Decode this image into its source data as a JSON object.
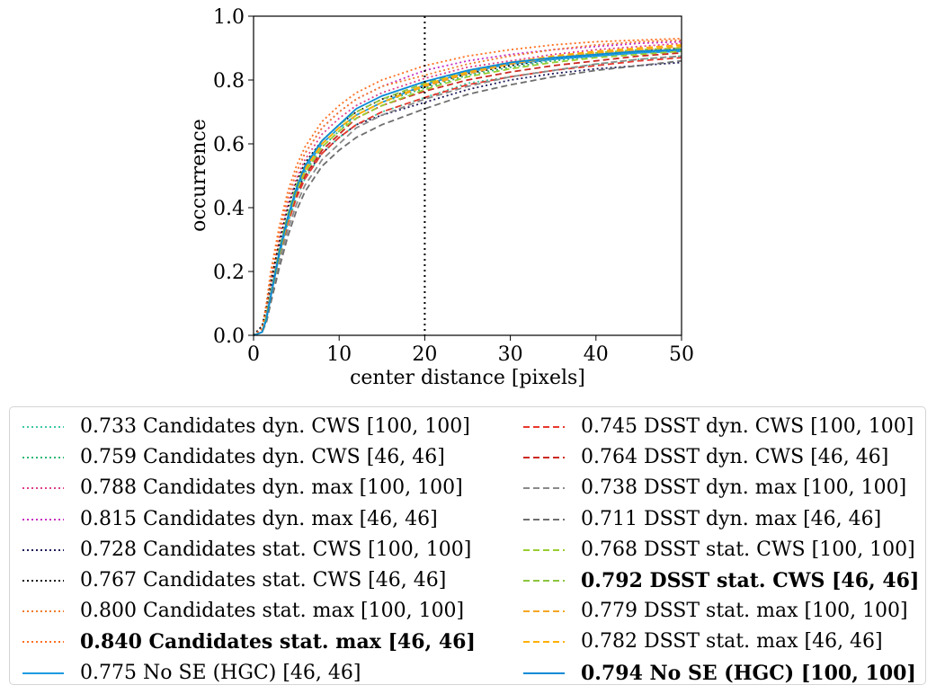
{
  "chart_data": {
    "type": "line",
    "xlabel": "center distance [pixels]",
    "ylabel": "occurrence",
    "xlim": [
      0,
      50
    ],
    "ylim": [
      0,
      1.0
    ],
    "xticks": [
      "0",
      "10",
      "20",
      "30",
      "40",
      "50"
    ],
    "yticks": [
      "0.0",
      "0.2",
      "0.4",
      "0.6",
      "0.8",
      "1.0"
    ],
    "threshold_x": 20,
    "grid": false,
    "legend_position": "below",
    "x": [
      0,
      1,
      1.5,
      2,
      3,
      4,
      5,
      6,
      8,
      10,
      12,
      15,
      20,
      25,
      30,
      35,
      40,
      45,
      50
    ],
    "series": [
      {
        "name": "0.733 Candidates dyn. CWS [100, 100]",
        "color": "#3ec9a3",
        "style": "dotted",
        "bold": false,
        "column": 0,
        "values": [
          0.0,
          0.01,
          0.05,
          0.12,
          0.25,
          0.35,
          0.43,
          0.49,
          0.57,
          0.62,
          0.66,
          0.7,
          0.745,
          0.79,
          0.81,
          0.83,
          0.85,
          0.865,
          0.875
        ]
      },
      {
        "name": "0.759 Candidates dyn. CWS [46, 46]",
        "color": "#2eb873",
        "style": "dotted",
        "bold": false,
        "column": 0,
        "values": [
          0.0,
          0.01,
          0.06,
          0.13,
          0.26,
          0.37,
          0.45,
          0.51,
          0.59,
          0.64,
          0.69,
          0.73,
          0.775,
          0.815,
          0.84,
          0.86,
          0.875,
          0.885,
          0.895
        ]
      },
      {
        "name": "0.788 Candidates dyn. max [100, 100]",
        "color": "#e0408a",
        "style": "dotted",
        "bold": false,
        "column": 0,
        "values": [
          0.0,
          0.02,
          0.08,
          0.16,
          0.3,
          0.41,
          0.49,
          0.55,
          0.63,
          0.68,
          0.72,
          0.76,
          0.805,
          0.84,
          0.86,
          0.88,
          0.895,
          0.905,
          0.915
        ]
      },
      {
        "name": "0.815 Candidates dyn. max [46, 46]",
        "color": "#c72fc0",
        "style": "dotted",
        "bold": false,
        "column": 0,
        "values": [
          0.0,
          0.02,
          0.09,
          0.18,
          0.32,
          0.43,
          0.51,
          0.57,
          0.65,
          0.7,
          0.74,
          0.78,
          0.83,
          0.86,
          0.88,
          0.895,
          0.905,
          0.915,
          0.92
        ]
      },
      {
        "name": "0.728 Candidates stat. CWS [100, 100]",
        "color": "#1e1a5a",
        "style": "dotted",
        "bold": false,
        "column": 0,
        "values": [
          0.0,
          0.03,
          0.08,
          0.15,
          0.27,
          0.37,
          0.45,
          0.5,
          0.57,
          0.62,
          0.66,
          0.69,
          0.73,
          0.77,
          0.8,
          0.82,
          0.835,
          0.845,
          0.855
        ]
      },
      {
        "name": "0.767 Candidates stat. CWS [46, 46]",
        "color": "#141414",
        "style": "dotted",
        "bold": false,
        "column": 0,
        "values": [
          0.0,
          0.03,
          0.09,
          0.17,
          0.29,
          0.4,
          0.48,
          0.54,
          0.61,
          0.66,
          0.7,
          0.74,
          0.78,
          0.82,
          0.845,
          0.865,
          0.88,
          0.89,
          0.9
        ]
      },
      {
        "name": "0.800 Candidates stat. max [100, 100]",
        "color": "#f07b28",
        "style": "dotted",
        "bold": false,
        "column": 0,
        "values": [
          0.0,
          0.02,
          0.09,
          0.18,
          0.32,
          0.43,
          0.51,
          0.57,
          0.65,
          0.7,
          0.74,
          0.78,
          0.815,
          0.85,
          0.875,
          0.895,
          0.91,
          0.92,
          0.925
        ]
      },
      {
        "name": "0.840 Candidates stat. max [46, 46]",
        "color": "#ff6f1e",
        "style": "dotted",
        "bold": true,
        "column": 0,
        "values": [
          0.0,
          0.02,
          0.1,
          0.2,
          0.34,
          0.45,
          0.53,
          0.59,
          0.67,
          0.72,
          0.76,
          0.8,
          0.845,
          0.875,
          0.895,
          0.91,
          0.92,
          0.925,
          0.93
        ]
      },
      {
        "name": "0.775 No SE (HGC) [46, 46]",
        "color": "#1d9be0",
        "style": "solid",
        "bold": false,
        "column": 0,
        "values": [
          0.0,
          0.01,
          0.05,
          0.12,
          0.25,
          0.36,
          0.45,
          0.52,
          0.6,
          0.65,
          0.69,
          0.73,
          0.785,
          0.825,
          0.85,
          0.865,
          0.875,
          0.885,
          0.89
        ]
      },
      {
        "name": "0.745 DSST dyn. CWS [100, 100]",
        "color": "#e8382e",
        "style": "dashed",
        "bold": false,
        "column": 1,
        "values": [
          0.0,
          0.01,
          0.05,
          0.12,
          0.24,
          0.35,
          0.43,
          0.49,
          0.57,
          0.62,
          0.66,
          0.7,
          0.745,
          0.785,
          0.81,
          0.83,
          0.845,
          0.86,
          0.87
        ]
      },
      {
        "name": "0.764 DSST dyn. CWS [46, 46]",
        "color": "#cc2a22",
        "style": "dashed",
        "bold": false,
        "column": 1,
        "values": [
          0.0,
          0.01,
          0.05,
          0.12,
          0.25,
          0.36,
          0.44,
          0.5,
          0.58,
          0.63,
          0.68,
          0.72,
          0.765,
          0.8,
          0.825,
          0.845,
          0.86,
          0.875,
          0.885
        ]
      },
      {
        "name": "0.738 DSST dyn. max [100, 100]",
        "color": "#8a8a8a",
        "style": "dashed",
        "bold": false,
        "column": 1,
        "values": [
          0.0,
          0.01,
          0.05,
          0.11,
          0.23,
          0.33,
          0.41,
          0.47,
          0.55,
          0.6,
          0.65,
          0.69,
          0.74,
          0.78,
          0.81,
          0.83,
          0.85,
          0.865,
          0.875
        ]
      },
      {
        "name": "0.711 DSST dyn. max [46, 46]",
        "color": "#6e6e6e",
        "style": "dashed",
        "bold": false,
        "column": 1,
        "values": [
          0.0,
          0.01,
          0.04,
          0.1,
          0.21,
          0.31,
          0.39,
          0.45,
          0.53,
          0.58,
          0.62,
          0.66,
          0.71,
          0.755,
          0.785,
          0.81,
          0.83,
          0.845,
          0.86
        ]
      },
      {
        "name": "0.768 DSST stat. CWS [100, 100]",
        "color": "#9acd32",
        "style": "dashed",
        "bold": false,
        "column": 1,
        "values": [
          0.0,
          0.01,
          0.05,
          0.12,
          0.25,
          0.36,
          0.45,
          0.51,
          0.59,
          0.64,
          0.68,
          0.72,
          0.77,
          0.81,
          0.835,
          0.855,
          0.87,
          0.88,
          0.89
        ]
      },
      {
        "name": "0.792 DSST stat. CWS [46, 46]",
        "color": "#8bc53f",
        "style": "dashed",
        "bold": true,
        "column": 1,
        "values": [
          0.0,
          0.01,
          0.06,
          0.13,
          0.27,
          0.38,
          0.47,
          0.53,
          0.61,
          0.66,
          0.7,
          0.74,
          0.79,
          0.83,
          0.855,
          0.87,
          0.885,
          0.895,
          0.9
        ]
      },
      {
        "name": "0.779 DSST stat. max [100, 100]",
        "color": "#f5a623",
        "style": "dashed",
        "bold": false,
        "column": 1,
        "values": [
          0.0,
          0.01,
          0.05,
          0.12,
          0.26,
          0.37,
          0.46,
          0.52,
          0.6,
          0.65,
          0.69,
          0.73,
          0.78,
          0.82,
          0.85,
          0.87,
          0.885,
          0.895,
          0.905
        ]
      },
      {
        "name": "0.782 DSST stat. max [46, 46]",
        "color": "#ffb000",
        "style": "dashed",
        "bold": false,
        "column": 1,
        "values": [
          0.0,
          0.01,
          0.05,
          0.12,
          0.26,
          0.37,
          0.46,
          0.52,
          0.6,
          0.65,
          0.69,
          0.73,
          0.785,
          0.825,
          0.855,
          0.875,
          0.89,
          0.9,
          0.91
        ]
      },
      {
        "name": "0.794 No SE (HGC) [100, 100]",
        "color": "#0b8ad6",
        "style": "solid",
        "bold": true,
        "column": 1,
        "values": [
          0.0,
          0.01,
          0.05,
          0.12,
          0.26,
          0.37,
          0.46,
          0.53,
          0.61,
          0.66,
          0.71,
          0.75,
          0.795,
          0.83,
          0.855,
          0.87,
          0.88,
          0.89,
          0.895
        ]
      }
    ]
  }
}
